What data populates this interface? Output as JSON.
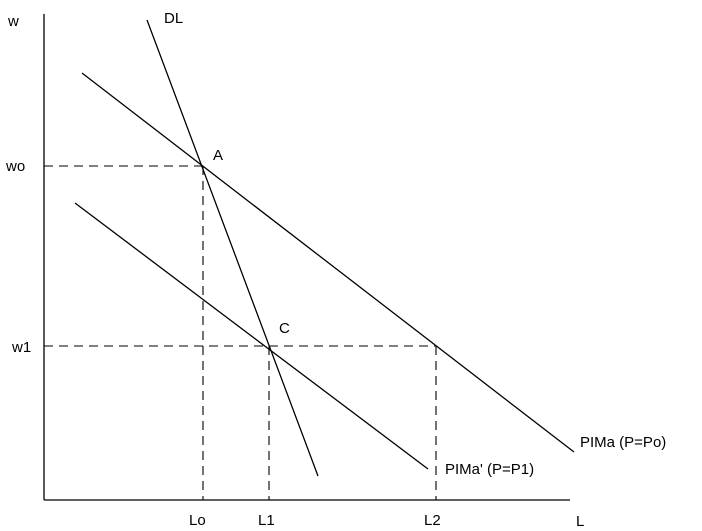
{
  "axes": {
    "y_label": "w",
    "x_label": "L"
  },
  "wage_ticks": {
    "w0": "wo",
    "w1": "w1"
  },
  "labor_ticks": {
    "l0": "Lo",
    "l1": "L1",
    "l2": "L2"
  },
  "curves": {
    "demand": "DL",
    "pima_high": "PIMa (P=Po)",
    "pima_low": "PIMa' (P=P1)"
  },
  "points": {
    "a": "A",
    "c": "C"
  }
}
